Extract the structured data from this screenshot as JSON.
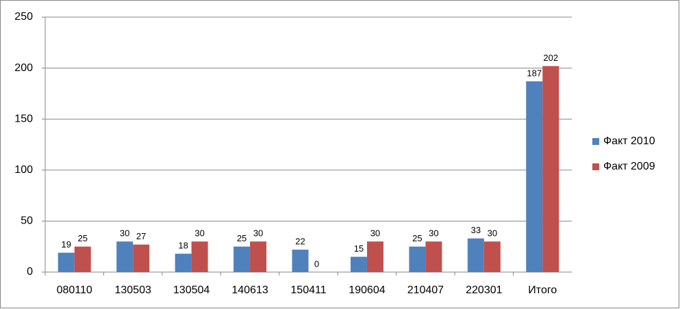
{
  "chart_data": {
    "type": "bar",
    "categories": [
      "080110",
      "130503",
      "130504",
      "140613",
      "150411",
      "190604",
      "210407",
      "220301",
      "Итого"
    ],
    "series": [
      {
        "name": "Факт 2010",
        "color": "#4f81bd",
        "values": [
          19,
          30,
          18,
          25,
          22,
          15,
          25,
          33,
          187
        ]
      },
      {
        "name": "Факт 2009",
        "color": "#c0504d",
        "values": [
          25,
          27,
          30,
          30,
          0,
          30,
          30,
          30,
          202
        ]
      }
    ],
    "ylim": [
      0,
      250
    ],
    "yticks": [
      0,
      50,
      100,
      150,
      200,
      250
    ],
    "grid": true,
    "legend": "right"
  }
}
